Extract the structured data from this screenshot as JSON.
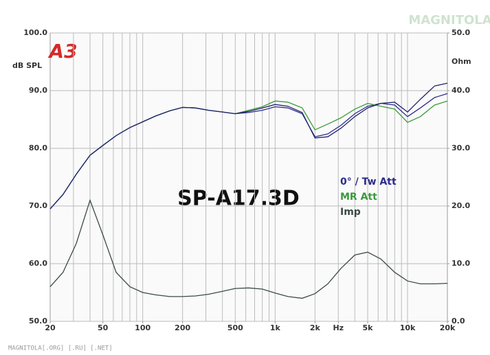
{
  "chart_data": {
    "type": "line",
    "title": "SP-A17.3D",
    "logo": "A3",
    "watermark": "MAGNITOLA",
    "footer": "MAGNITOLA[.ORG] [.RU] [.NET]",
    "ylabel": "dB SPL",
    "y2label": "Ohm",
    "x": [
      20,
      25,
      31.5,
      40,
      50,
      63,
      80,
      100,
      125,
      160,
      200,
      250,
      315,
      400,
      500,
      630,
      800,
      1000,
      1250,
      1600,
      2000,
      2500,
      3150,
      4000,
      5000,
      6300,
      8000,
      10000,
      12500,
      16000,
      20000
    ],
    "xlog": true,
    "xlim": [
      20,
      20000
    ],
    "xticks": [
      20,
      50,
      100,
      200,
      500,
      {
        "value": 1000,
        "label": "1k"
      },
      {
        "value": 2000,
        "label": "2k"
      },
      {
        "value": 3000,
        "label": "Hz"
      },
      {
        "value": 5000,
        "label": "5k"
      },
      {
        "value": 10000,
        "label": "10k"
      },
      {
        "value": 20000,
        "label": "20k"
      }
    ],
    "ylim": [
      50,
      100
    ],
    "yticks": [
      {
        "value": 50,
        "label": "50.0"
      },
      {
        "value": 60,
        "label": "60.0"
      },
      {
        "value": 70,
        "label": "70.0"
      },
      {
        "value": 80,
        "label": "80.0"
      },
      {
        "value": 90,
        "label": "90.0"
      },
      {
        "value": 100,
        "label": "100.0"
      }
    ],
    "y2lim": [
      0,
      50
    ],
    "y2ticks": [
      {
        "value": 0,
        "label": "0.0"
      },
      {
        "value": 10,
        "label": "10.0"
      },
      {
        "value": 20,
        "label": "20.0"
      },
      {
        "value": 30,
        "label": "30.0"
      },
      {
        "value": 40,
        "label": "40.0"
      },
      {
        "value": 50,
        "label": "50.0"
      }
    ],
    "grid": true,
    "series": [
      {
        "name": "0° / Tw Att",
        "color": "#2b2b8c",
        "values": [
          69.5,
          72,
          75.5,
          78.8,
          80.5,
          82.2,
          83.6,
          84.6,
          85.6,
          86.5,
          87.1,
          87.0,
          86.6,
          86.3,
          86.0,
          86.2,
          86.6,
          87.2,
          87.0,
          86.0,
          82.0,
          82.5,
          84.0,
          86.0,
          87.3,
          87.8,
          87.5,
          85.5,
          87.0,
          88.8,
          89.5
        ]
      },
      {
        "name": "MR Att",
        "color": "#3a9a3a",
        "values": [
          69.5,
          72,
          75.5,
          78.8,
          80.5,
          82.2,
          83.6,
          84.6,
          85.6,
          86.5,
          87.1,
          87.0,
          86.6,
          86.3,
          86.0,
          86.6,
          87.2,
          88.2,
          88.0,
          87.0,
          83.2,
          84.2,
          85.3,
          86.8,
          87.8,
          87.3,
          86.8,
          84.5,
          85.5,
          87.5,
          88.2
        ]
      },
      {
        "color": "#23236e",
        "values": [
          69.5,
          72,
          75.5,
          78.8,
          80.5,
          82.2,
          83.6,
          84.6,
          85.6,
          86.5,
          87.1,
          87.0,
          86.6,
          86.3,
          86.0,
          86.4,
          87.0,
          87.6,
          87.3,
          86.2,
          81.8,
          82.0,
          83.5,
          85.5,
          87.0,
          87.8,
          88.0,
          86.3,
          88.5,
          90.8,
          91.3
        ]
      },
      {
        "name": "Imp",
        "color": "#3c4a48",
        "axis": "y2",
        "values": [
          6,
          8.5,
          13.5,
          21,
          15,
          8.5,
          6,
          5,
          4.6,
          4.3,
          4.3,
          4.4,
          4.7,
          5.2,
          5.7,
          5.8,
          5.6,
          4.9,
          4.3,
          4.0,
          4.8,
          6.5,
          9.2,
          11.5,
          12.0,
          10.8,
          8.5,
          7.0,
          6.5,
          6.5,
          6.6
        ]
      }
    ]
  }
}
